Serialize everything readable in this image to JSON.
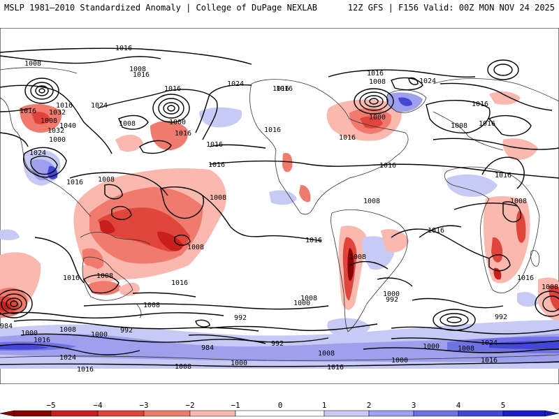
{
  "header": {
    "title": "MSLP 1981–2010 Standardized Anomaly | College of DuPage NEXLAB",
    "run_info": "12Z GFS | F156 Valid: 00Z MON NOV 24 2025"
  },
  "colors": {
    "neg5": "#8b0000",
    "neg4": "#c81e1e",
    "neg3": "#e0453c",
    "neg2": "#f07a6e",
    "neg1": "#fbb8ae",
    "pos1": "#c8caf6",
    "pos2": "#9ea0ee",
    "pos3": "#7072e4",
    "pos4": "#4446d6",
    "pos5": "#1a1ac8",
    "contour": "#000000",
    "coast": "#333333"
  },
  "colorbar": {
    "ticks": [
      "−5",
      "−4",
      "−3",
      "−2",
      "−1",
      "0",
      "1",
      "2",
      "3",
      "4",
      "5"
    ]
  },
  "isobar_labels": [
    "1016",
    "1008",
    "1008",
    "1016",
    "1016",
    "1024",
    "1016",
    "1016",
    "1032",
    "1016",
    "1024",
    "1000",
    "1008",
    "1032",
    "1008",
    "1040",
    "1000",
    "1016",
    "1024",
    "1016",
    "1016",
    "1016",
    "1008",
    "1016",
    "1016",
    "1024",
    "1016",
    "1016",
    "1016",
    "1000",
    "1008",
    "1016",
    "1008",
    "1008",
    "1008",
    "1016",
    "1016",
    "1008",
    "1016",
    "1008",
    "1016",
    "1008",
    "1016",
    "1008",
    "1008",
    "1000",
    "992",
    "1008",
    "1000",
    "984",
    "992",
    "1000",
    "992",
    "1000",
    "1016",
    "984",
    "1008",
    "992",
    "1016",
    "992",
    "1008",
    "1000",
    "1000",
    "1008",
    "1024",
    "1016",
    "1008",
    "1016",
    "1000",
    "1024",
    "1016",
    "1016",
    "1008"
  ]
}
